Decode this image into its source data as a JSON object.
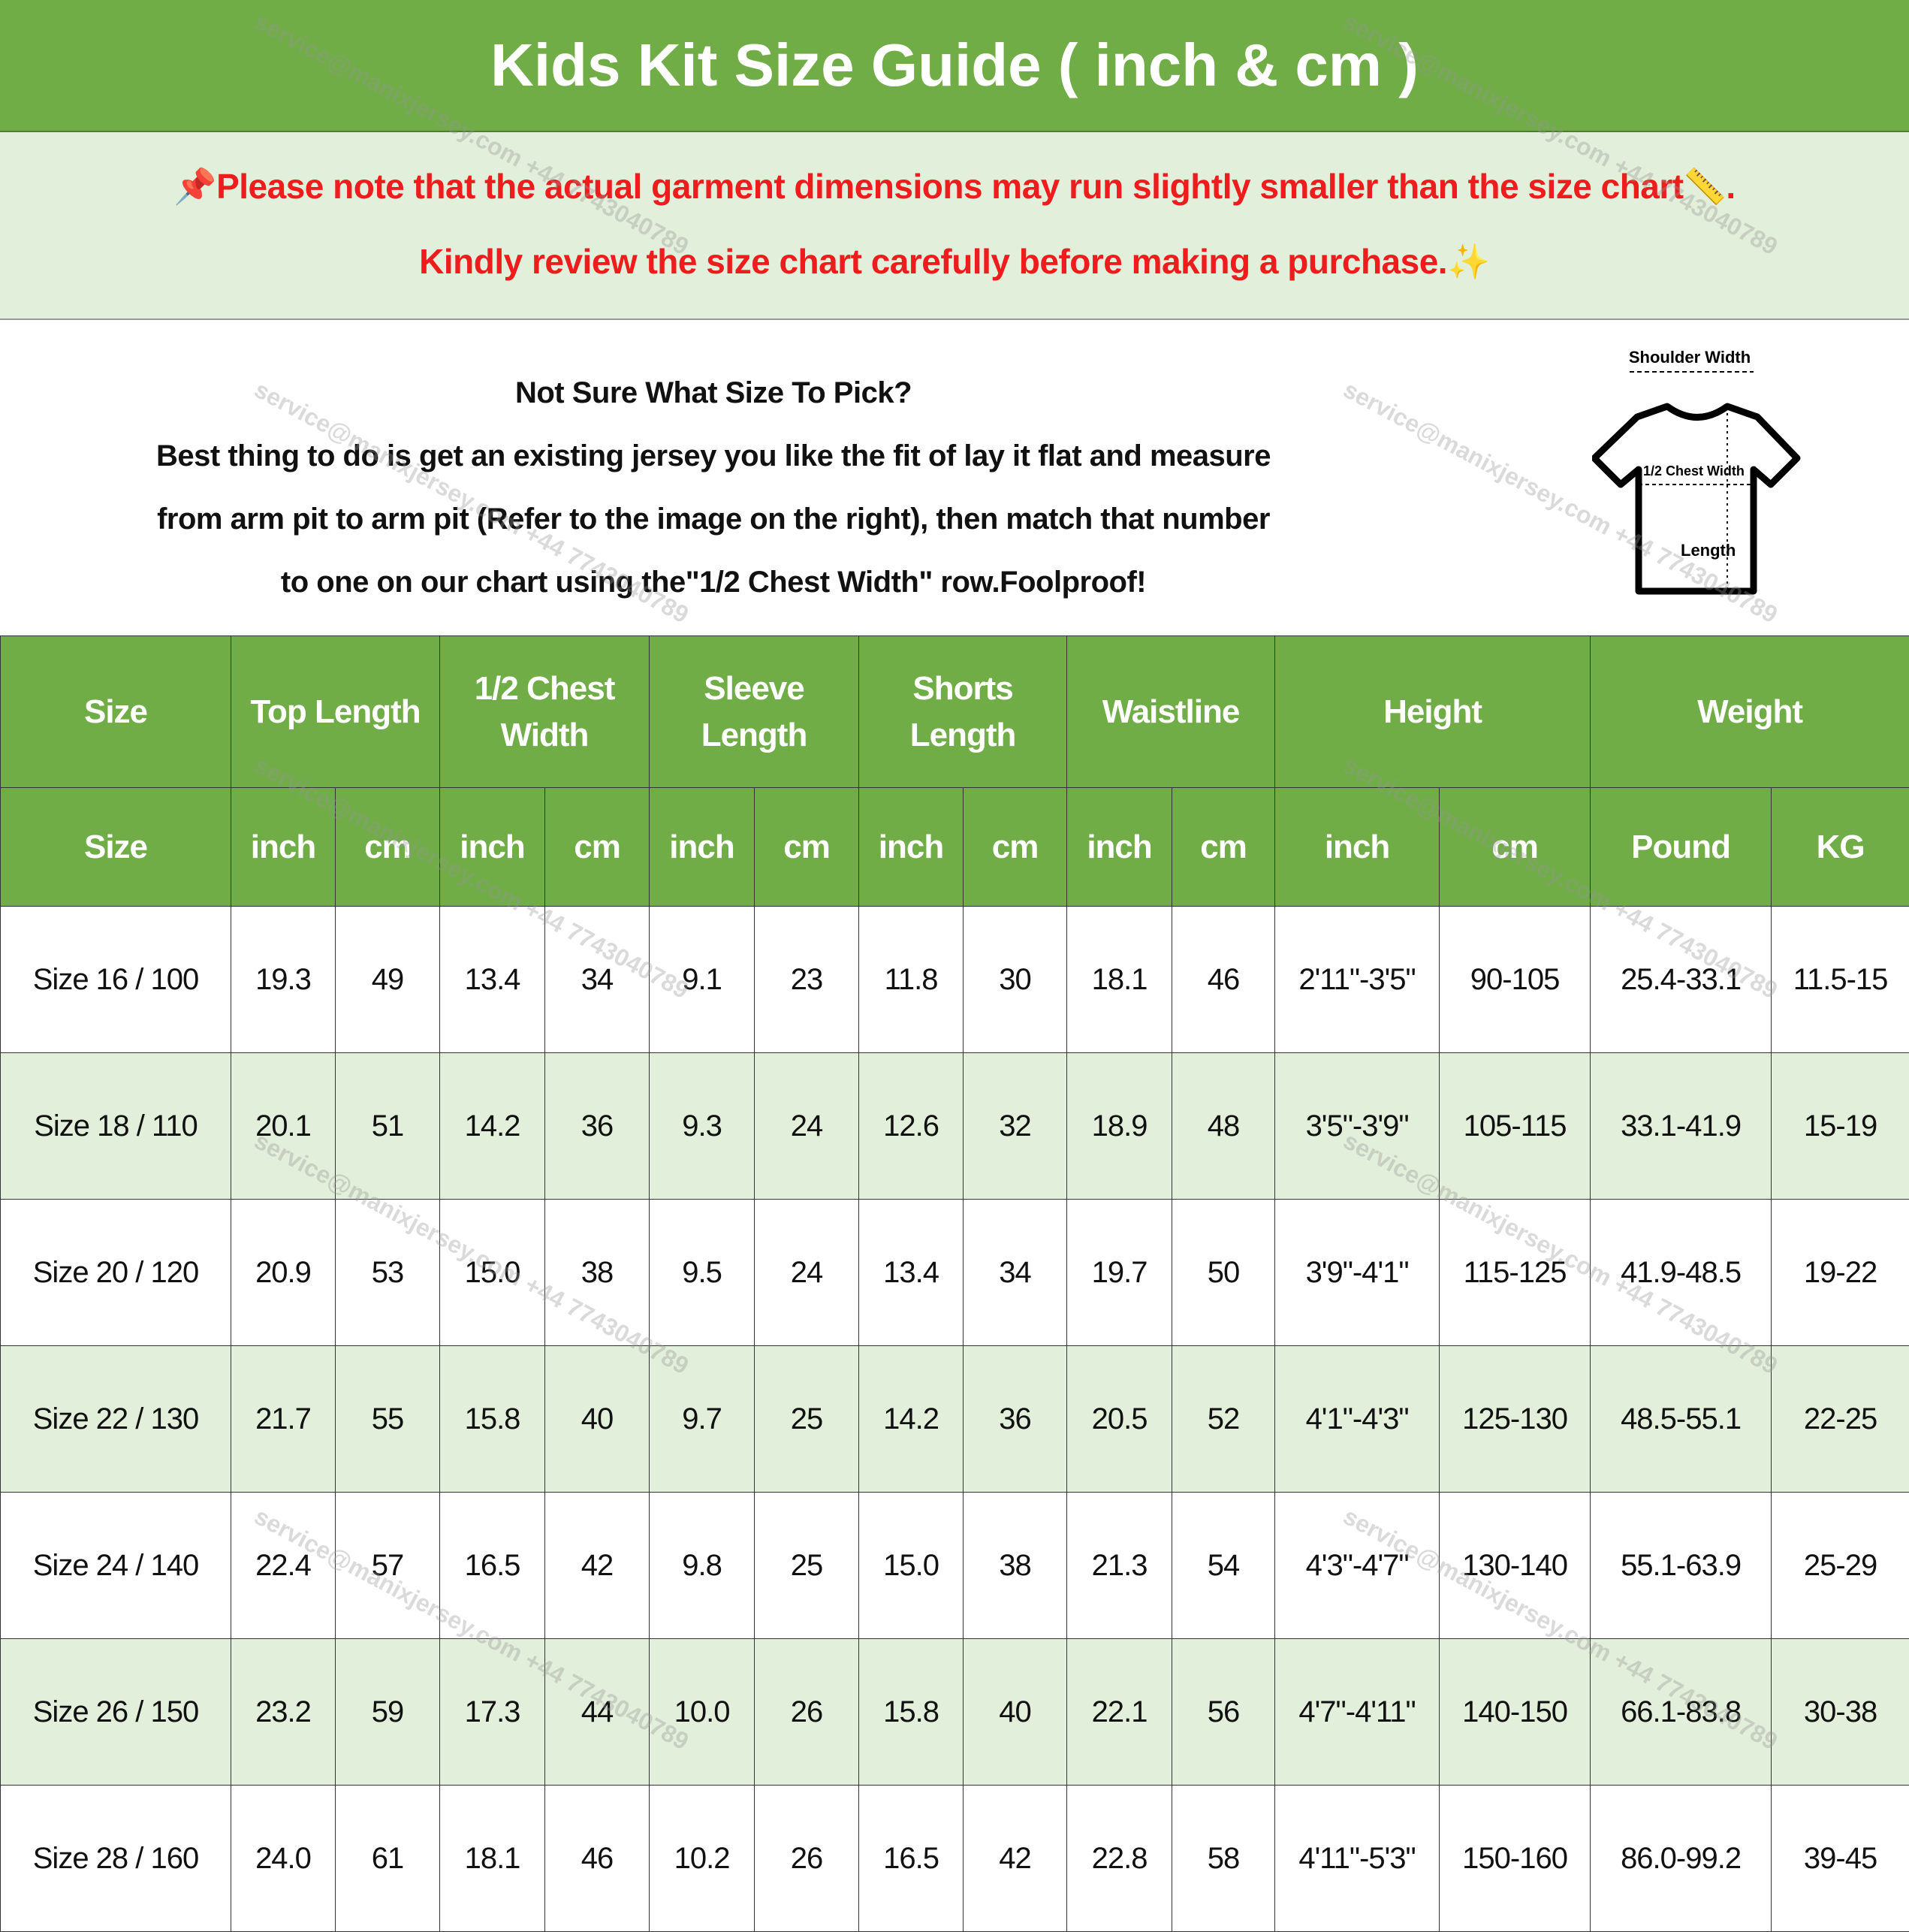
{
  "title": "Kids Kit Size Guide ( inch & cm )",
  "notice": {
    "line1": "Please note that the actual garment dimensions may run slightly smaller than the size chart",
    "line1_end": ".",
    "line2": "Kindly review the size chart carefully before making a purchase.",
    "icons": [
      "pushpin-icon",
      "ruler-icon",
      "sparkles-icon"
    ],
    "color": "#ee1c1c"
  },
  "info": {
    "heading": "Not Sure What Size To Pick?",
    "body": [
      "Best thing to do is get an existing jersey you like the fit of lay it flat and measure",
      "from arm pit to arm pit (Refer to the image on the right), then match that number",
      "to one on our chart using the\"1/2 Chest Width\" row.Foolproof!"
    ]
  },
  "diagram": {
    "shoulder": "Shoulder Width",
    "chest": "1/2 Chest Width",
    "length": "Length"
  },
  "table": {
    "groups": [
      "Size",
      "Top Length",
      "1/2 Chest Width",
      "Sleeve Length",
      "Shorts Length",
      "Waistline",
      "Height",
      "Weight"
    ],
    "units": [
      "Size",
      "inch",
      "cm",
      "inch",
      "cm",
      "inch",
      "cm",
      "inch",
      "cm",
      "inch",
      "cm",
      "inch",
      "cm",
      "Pound",
      "KG"
    ],
    "rows": [
      [
        "Size 16 / 100",
        "19.3",
        "49",
        "13.4",
        "34",
        "9.1",
        "23",
        "11.8",
        "30",
        "18.1",
        "46",
        "2'11\"-3'5\"",
        "90-105",
        "25.4-33.1",
        "11.5-15"
      ],
      [
        "Size 18 / 110",
        "20.1",
        "51",
        "14.2",
        "36",
        "9.3",
        "24",
        "12.6",
        "32",
        "18.9",
        "48",
        "3'5\"-3'9\"",
        "105-115",
        "33.1-41.9",
        "15-19"
      ],
      [
        "Size 20 / 120",
        "20.9",
        "53",
        "15.0",
        "38",
        "9.5",
        "24",
        "13.4",
        "34",
        "19.7",
        "50",
        "3'9\"-4'1\"",
        "115-125",
        "41.9-48.5",
        "19-22"
      ],
      [
        "Size 22 / 130",
        "21.7",
        "55",
        "15.8",
        "40",
        "9.7",
        "25",
        "14.2",
        "36",
        "20.5",
        "52",
        "4'1\"-4'3\"",
        "125-130",
        "48.5-55.1",
        "22-25"
      ],
      [
        "Size 24 / 140",
        "22.4",
        "57",
        "16.5",
        "42",
        "9.8",
        "25",
        "15.0",
        "38",
        "21.3",
        "54",
        "4'3\"-4'7\"",
        "130-140",
        "55.1-63.9",
        "25-29"
      ],
      [
        "Size 26 / 150",
        "23.2",
        "59",
        "17.3",
        "44",
        "10.0",
        "26",
        "15.8",
        "40",
        "22.1",
        "56",
        "4'7\"-4'11\"",
        "140-150",
        "66.1-83.8",
        "30-38"
      ],
      [
        "Size 28 / 160",
        "24.0",
        "61",
        "18.1",
        "46",
        "10.2",
        "26",
        "16.5",
        "42",
        "22.8",
        "58",
        "4'11\"-5'3\"",
        "150-160",
        "86.0-99.2",
        "39-45"
      ]
    ]
  },
  "watermark": "service@manixjersey.com +44 7743040789",
  "colors": {
    "header_green": "#70ad47",
    "light_green": "#e2efda"
  }
}
